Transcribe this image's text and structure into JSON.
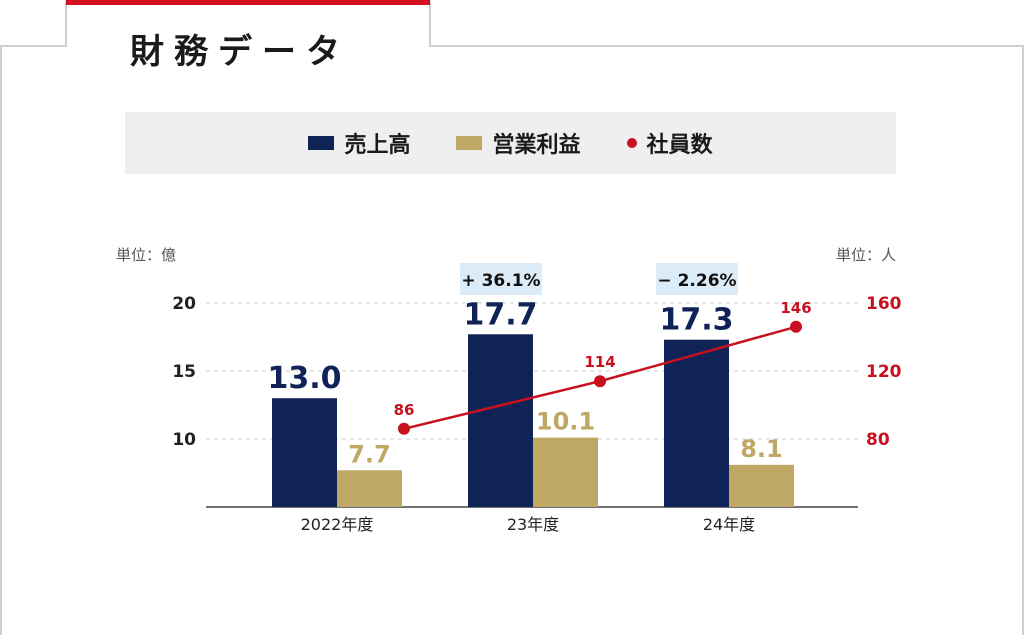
{
  "panel": {
    "title": "財務データ"
  },
  "colors": {
    "revenue": "#0f2357",
    "profit": "#bfa766",
    "employees": "#c8101f",
    "accent": "#d6101f",
    "label_bg": "#dcebf8"
  },
  "legend": [
    {
      "label": "売上高",
      "kind": "bar",
      "color_key": "revenue"
    },
    {
      "label": "営業利益",
      "kind": "bar",
      "color_key": "profit"
    },
    {
      "label": "社員数",
      "kind": "dot",
      "color_key": "employees"
    }
  ],
  "chart_data": {
    "type": "bar",
    "categories": [
      "2022年度",
      "23年度",
      "24年度"
    ],
    "series": [
      {
        "name": "売上高",
        "type": "bar",
        "axis": "left",
        "values": [
          13.0,
          17.7,
          17.3
        ],
        "labels": [
          "13.0",
          "17.7",
          "17.3"
        ]
      },
      {
        "name": "営業利益",
        "type": "bar",
        "axis": "left",
        "values": [
          7.7,
          10.1,
          8.1
        ],
        "labels": [
          "7.7",
          "10.1",
          "8.1"
        ]
      },
      {
        "name": "社員数",
        "type": "line",
        "axis": "right",
        "values": [
          86,
          114,
          146
        ],
        "labels": [
          "86",
          "114",
          "146"
        ]
      }
    ],
    "growth_labels": [
      "",
      "+ 36.1%",
      "− 2.26%"
    ],
    "left_axis": {
      "unit": "単位：億",
      "ticks": [
        10,
        15,
        20
      ],
      "tick_labels": [
        "10",
        "15",
        "20"
      ],
      "range": [
        5,
        20
      ]
    },
    "right_axis": {
      "unit": "単位：人",
      "ticks": [
        80,
        120,
        160
      ],
      "tick_labels": [
        "80",
        "120",
        "160"
      ],
      "range": [
        40,
        160
      ]
    },
    "grid": "dashed horizontal"
  }
}
